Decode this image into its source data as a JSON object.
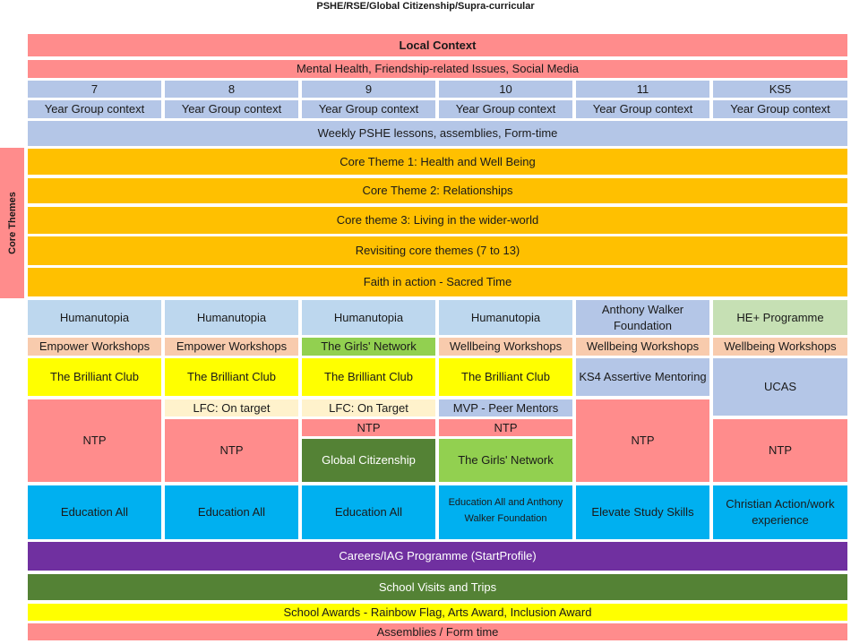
{
  "title": "PSHE/RSE/Global Citizenship/Supra-curricular",
  "local_context": "Local Context",
  "issues": "Mental Health, Friendship-related Issues, Social Media",
  "years": [
    "7",
    "8",
    "9",
    "10",
    "11",
    "KS5"
  ],
  "year_context": "Year Group context",
  "weekly": "Weekly PSHE lessons, assemblies, Form-time",
  "side_label": "Core Themes",
  "themes": [
    "Core Theme 1: Health and Well Being",
    "Core Theme 2: Relationships",
    "Core theme 3: Living in the wider-world",
    "Revisiting core themes (7 to 13)",
    "Faith in action - Sacred Time"
  ],
  "row_a": [
    "Humanutopia",
    "Humanutopia",
    "Humanutopia",
    "Humanutopia",
    "Anthony Walker Foundation",
    "HE+ Programme"
  ],
  "row_b": [
    "Empower Workshops",
    "Empower Workshops",
    "The Girls' Network",
    "Wellbeing Workshops",
    "Wellbeing Workshops",
    "Wellbeing Workshops"
  ],
  "row_c": [
    "The Brilliant Club",
    "The Brilliant Club",
    "The Brilliant Club",
    "The Brilliant Club",
    "KS4 Assertive Mentoring"
  ],
  "ucas": "UCAS",
  "lfc": [
    "LFC: On target",
    "LFC: On Target"
  ],
  "mvp": "MVP - Peer Mentors",
  "ntp": "NTP",
  "global": "Global Citizenship",
  "girls_network": "The Girls' Network",
  "row_e": [
    "Education All",
    "Education All",
    "Education All",
    "Education All and Anthony Walker Foundation",
    "Elevate Study Skills",
    "Christian Action/work experience"
  ],
  "careers": "Careers/IAG Programme (StartProfile)",
  "visits": "School Visits and Trips",
  "awards": "School Awards - Rainbow Flag, Arts Award, Inclusion Award",
  "assemblies": "Assemblies / Form time"
}
